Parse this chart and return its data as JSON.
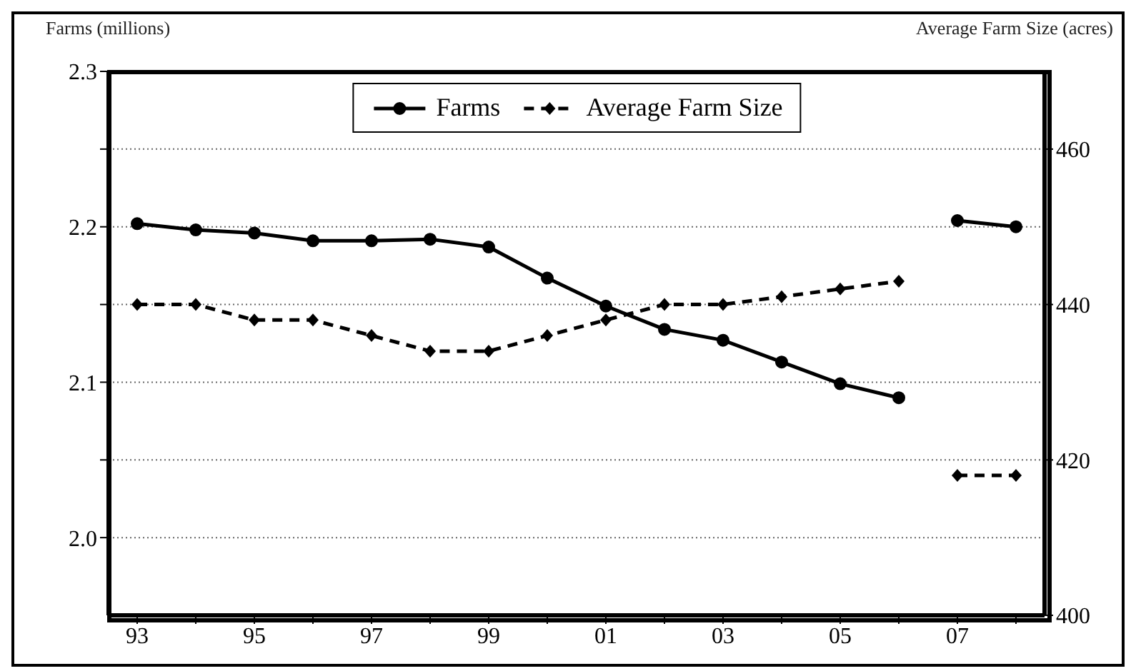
{
  "chart_data": {
    "type": "line",
    "categories": [
      "93",
      null,
      "95",
      null,
      "97",
      null,
      "99",
      null,
      "01",
      null,
      "03",
      null,
      "05",
      null,
      "07",
      null
    ],
    "ylabel": "Farms (millions)",
    "y2label": "Average Farm Size (acres)",
    "ylim": [
      1.95,
      2.3
    ],
    "yticks": [
      {
        "value": 2.0,
        "label": "2.0"
      },
      {
        "value": 2.05,
        "label": null
      },
      {
        "value": 2.1,
        "label": "2.1"
      },
      {
        "value": 2.15,
        "label": null
      },
      {
        "value": 2.2,
        "label": "2.2"
      },
      {
        "value": 2.25,
        "label": null
      },
      {
        "value": 2.3,
        "label": "2.3"
      }
    ],
    "y2lim": [
      400,
      470
    ],
    "y2ticks": [
      400,
      420,
      440,
      460
    ],
    "grid": "y",
    "legend": "top",
    "series": [
      {
        "name": "Farms",
        "color": "#000000",
        "marker": "circle",
        "line_style": "solid",
        "values": [
          2.202,
          2.198,
          2.196,
          2.191,
          2.191,
          2.192,
          2.187,
          2.167,
          2.149,
          2.134,
          2.127,
          2.113,
          2.099,
          2.09,
          null,
          null
        ]
      },
      {
        "name": "Average Farm Size",
        "color": "#000000",
        "marker": "diamond",
        "line_style": "dashed",
        "axis": "y2",
        "values": [
          440,
          440,
          438,
          438,
          436,
          434,
          434,
          436,
          438,
          440,
          440,
          441,
          442,
          443,
          null,
          null
        ]
      },
      {
        "color": "#000000",
        "marker": "circle",
        "line_style": "solid",
        "values": [
          null,
          null,
          null,
          null,
          null,
          null,
          null,
          null,
          null,
          null,
          null,
          null,
          null,
          null,
          2.204,
          2.2
        ]
      },
      {
        "color": "#000000",
        "marker": "diamond",
        "line_style": "dashed",
        "axis": "y2",
        "values": [
          null,
          null,
          null,
          null,
          null,
          null,
          null,
          null,
          null,
          null,
          null,
          null,
          null,
          null,
          418,
          418
        ]
      }
    ]
  }
}
